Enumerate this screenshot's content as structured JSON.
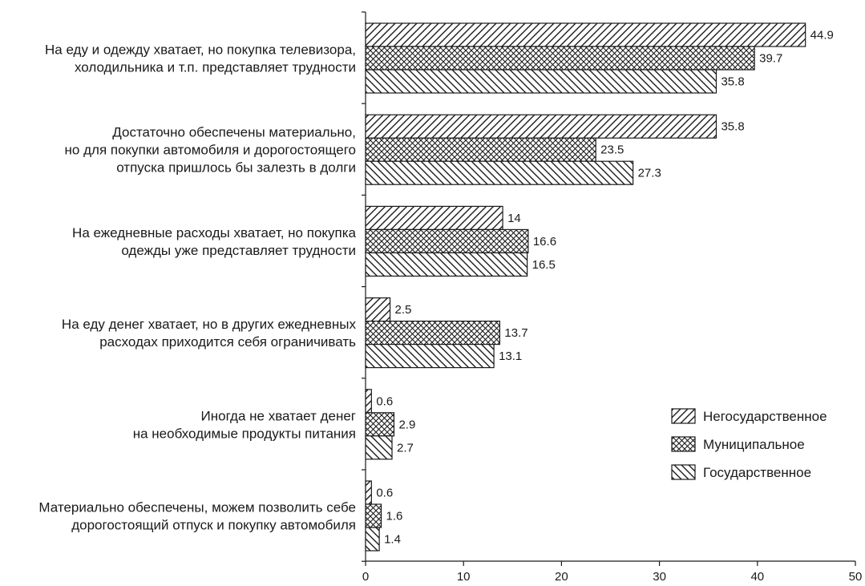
{
  "chart_data": {
    "type": "bar",
    "orientation": "horizontal",
    "categories": [
      [
        "На еду и одежду хватает, но покупка телевизора,",
        "холодильника и т.п. представляет трудности"
      ],
      [
        "Достаточно обеспечены материально,",
        "но для покупки автомобиля и дорогостоящего",
        "отпуска пришлось бы залезть в долги"
      ],
      [
        "На ежедневные расходы хватает, но покупка",
        "одежды уже представляет трудности"
      ],
      [
        "На еду денег хватает, но в других ежедневных",
        "расходах приходится себя ограничивать"
      ],
      [
        "Иногда не хватает денег",
        "на необходимые продукты питания"
      ],
      [
        "Материально обеспечены, можем позволить себе",
        "дорогостоящий отпуск и покупку автомобиля"
      ]
    ],
    "series": [
      {
        "name": "Негосударственное",
        "pattern": "forward-diagonal",
        "values": [
          44.9,
          35.8,
          14,
          2.5,
          0.6,
          0.6
        ]
      },
      {
        "name": "Муниципальное",
        "pattern": "crosshatch",
        "values": [
          39.7,
          23.5,
          16.6,
          13.7,
          2.9,
          1.6
        ]
      },
      {
        "name": "Государственное",
        "pattern": "back-diagonal",
        "values": [
          35.8,
          27.3,
          16.5,
          13.1,
          2.7,
          1.4
        ]
      }
    ],
    "xlim": [
      0,
      50
    ],
    "xticks": [
      0,
      10,
      20,
      30,
      40,
      50
    ],
    "legend_position": "right",
    "grid": false,
    "colors": {
      "stroke": "#1a1a1a",
      "fill": "#ffffff"
    }
  }
}
